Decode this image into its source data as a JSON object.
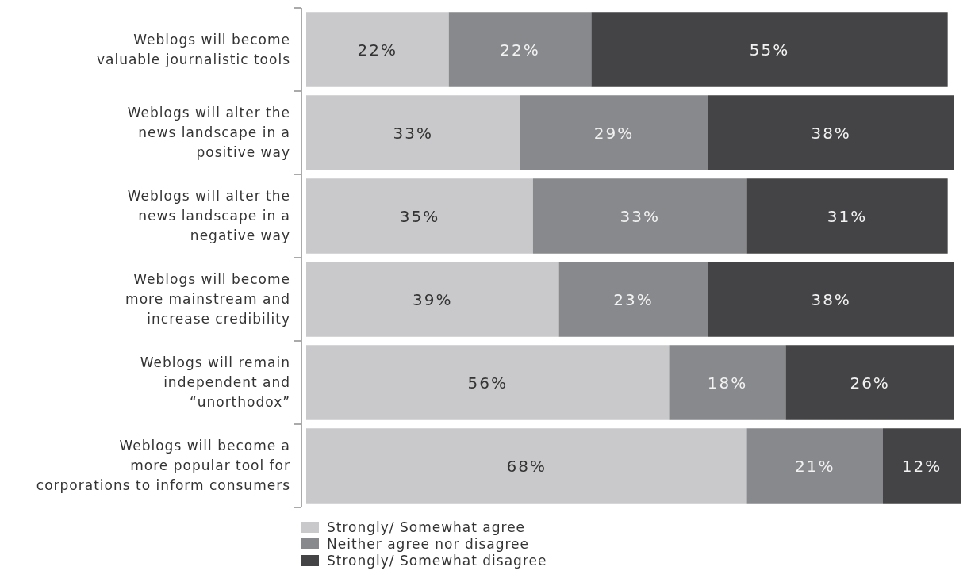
{
  "chart_data": {
    "type": "bar",
    "orientation": "horizontal",
    "stacked": true,
    "categories": [
      "Weblogs will become\nvaluable journalistic tools",
      "Weblogs will alter the\nnews landscape in a\npositive way",
      "Weblogs will alter the\nnews landscape in a\nnegative way",
      "Weblogs will become\nmore mainstream and\nincrease credibility",
      "Weblogs will remain\nindependent and\n“unorthodox”",
      "Weblogs will become a\nmore popular tool for\ncorporations to inform consumers"
    ],
    "series": [
      {
        "name": "Strongly/ Somewhat agree",
        "color": "#c9c9cb",
        "values": [
          22,
          33,
          35,
          39,
          56,
          68
        ],
        "value_labels": [
          "22%",
          "33%",
          "35%",
          "39%",
          "56%",
          "68%"
        ]
      },
      {
        "name": "Neither agree nor disagree",
        "color": "#88898c",
        "values": [
          22,
          29,
          33,
          23,
          18,
          21
        ],
        "value_labels": [
          "22%",
          "29%",
          "33%",
          "23%",
          "18%",
          "21%"
        ]
      },
      {
        "name": "Strongly/ Somewhat disagree",
        "color": "#444446",
        "values": [
          55,
          38,
          31,
          38,
          26,
          12
        ],
        "value_labels": [
          "55%",
          "38%",
          "31%",
          "38%",
          "26%",
          "12%"
        ]
      }
    ],
    "xlim": [
      0,
      101
    ],
    "tick_labels": "y",
    "legend": "bottom"
  }
}
